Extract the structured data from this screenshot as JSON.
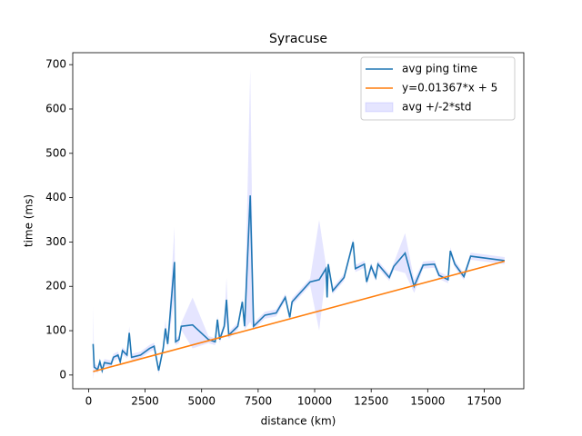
{
  "chart_data": {
    "type": "line",
    "title": "Syracuse",
    "xlabel": "distance (km)",
    "ylabel": "time (ms)",
    "x": [
      200,
      250,
      400,
      500,
      600,
      700,
      1000,
      1100,
      1300,
      1400,
      1500,
      1700,
      1800,
      1900,
      2300,
      2700,
      2900,
      3100,
      3300,
      3400,
      3500,
      3800,
      3850,
      4000,
      4100,
      4600,
      5300,
      5600,
      5700,
      5800,
      6000,
      6100,
      6200,
      6600,
      6800,
      6900,
      7150,
      7300,
      7800,
      8300,
      8700,
      8900,
      9000,
      9800,
      10200,
      10500,
      10550,
      10600,
      10800,
      11300,
      11700,
      11800,
      12200,
      12300,
      12500,
      12700,
      12800,
      13300,
      13500,
      14000,
      14400,
      14800,
      15300,
      15500,
      15900,
      16000,
      16200,
      16600,
      16900,
      18400
    ],
    "series": [
      {
        "name": "avg ping time",
        "color": "#1f77b4",
        "values": [
          70,
          18,
          12,
          30,
          10,
          28,
          25,
          40,
          45,
          30,
          55,
          45,
          95,
          40,
          45,
          60,
          65,
          10,
          60,
          105,
          70,
          255,
          75,
          80,
          110,
          113,
          80,
          75,
          125,
          80,
          110,
          170,
          90,
          110,
          165,
          110,
          405,
          110,
          135,
          140,
          175,
          130,
          165,
          210,
          215,
          240,
          175,
          250,
          190,
          220,
          300,
          240,
          250,
          210,
          245,
          220,
          250,
          220,
          245,
          275,
          200,
          248,
          250,
          225,
          215,
          280,
          250,
          222,
          268,
          258
        ]
      },
      {
        "name": "y=0.01367*x + 5",
        "color": "#ff7f0e",
        "x": [
          200,
          18400
        ],
        "values": [
          7.73,
          256.53
        ]
      },
      {
        "name": "avg +/-2*std",
        "color": "#0000ff",
        "kind": "band",
        "upper": [
          155,
          26,
          20,
          38,
          18,
          36,
          33,
          48,
          53,
          38,
          63,
          53,
          110,
          48,
          53,
          68,
          73,
          18,
          68,
          125,
          78,
          335,
          83,
          88,
          118,
          175,
          88,
          83,
          133,
          88,
          118,
          220,
          98,
          118,
          173,
          118,
          690,
          118,
          143,
          148,
          183,
          138,
          173,
          218,
          350,
          248,
          183,
          258,
          198,
          228,
          308,
          248,
          258,
          218,
          253,
          228,
          258,
          228,
          253,
          320,
          215,
          256,
          258,
          233,
          223,
          288,
          258,
          230,
          276,
          266
        ],
        "lower": [
          -10,
          10,
          4,
          22,
          2,
          20,
          17,
          32,
          37,
          22,
          47,
          37,
          80,
          32,
          37,
          52,
          57,
          2,
          52,
          85,
          62,
          175,
          67,
          72,
          102,
          60,
          72,
          67,
          117,
          72,
          102,
          120,
          82,
          102,
          157,
          102,
          120,
          102,
          127,
          132,
          167,
          122,
          157,
          202,
          100,
          232,
          167,
          242,
          182,
          212,
          292,
          232,
          242,
          202,
          237,
          212,
          242,
          212,
          237,
          230,
          185,
          240,
          242,
          217,
          207,
          272,
          242,
          214,
          260,
          250
        ]
      }
    ],
    "xlim": [
      -700,
      19250
    ],
    "ylim": [
      -31,
      727
    ],
    "xticks": [
      0,
      2500,
      5000,
      7500,
      10000,
      12500,
      15000,
      17500
    ],
    "yticks": [
      0,
      100,
      200,
      300,
      400,
      500,
      600,
      700
    ],
    "legend": "upper right"
  }
}
